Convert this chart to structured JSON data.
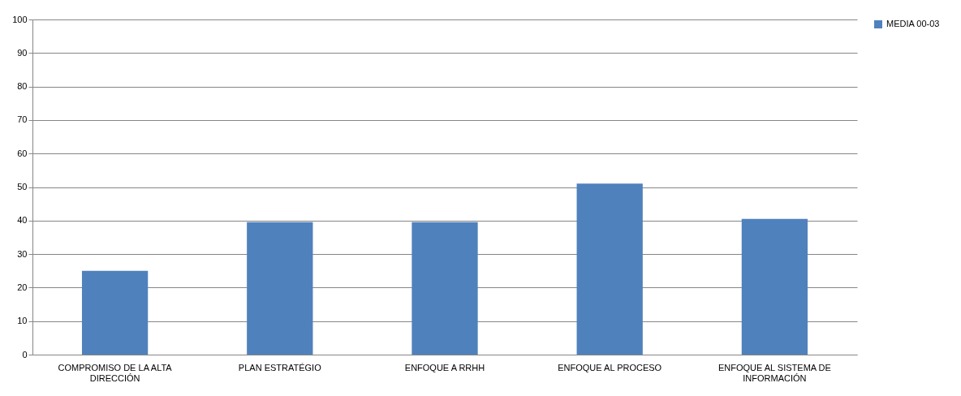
{
  "chart_data": {
    "type": "bar",
    "categories": [
      "COMPROMISO DE LA ALTA DIRECCIÓN",
      "PLAN ESTRATÉGIO",
      "ENFOQUE A RRHH",
      "ENFOQUE AL PROCESO",
      "ENFOQUE AL SISTEMA DE INFORMACIÓN"
    ],
    "series": [
      {
        "name": "MEDIA 00-03",
        "color": "#4f81bd",
        "values": [
          25,
          39.5,
          39.5,
          51,
          40.5
        ]
      }
    ],
    "ylim": [
      0,
      100
    ],
    "yticks": [
      0,
      10,
      20,
      30,
      40,
      50,
      60,
      70,
      80,
      90,
      100
    ],
    "grid": "y",
    "legend": "right"
  }
}
